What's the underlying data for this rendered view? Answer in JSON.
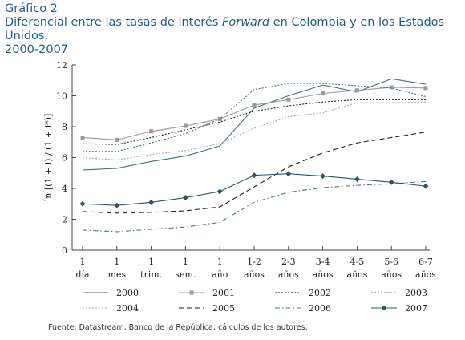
{
  "header": {
    "figure_label": "Gráfico 2",
    "title_part1": "Diferencial entre las tasas de interés ",
    "title_italic": "Forward",
    "title_part2": " en Colombia y en los Estados Unidos,",
    "title_line3": "2000-2007"
  },
  "source": "Fuente: Datastream, Banco de la República; cálculos de los autores.",
  "chart_data": {
    "type": "line",
    "title": "Diferencial entre las tasas de interés Forward en Colombia y en los Estados Unidos, 2000-2007",
    "xlabel": "",
    "ylabel": "ln [(1 + i) / (1 + i*)]",
    "ylim": [
      0,
      12
    ],
    "yticks": [
      0,
      2,
      4,
      6,
      8,
      10,
      12
    ],
    "categories": [
      [
        "1",
        "día"
      ],
      [
        "1",
        "mes"
      ],
      [
        "1",
        "trim."
      ],
      [
        "1",
        "sem."
      ],
      [
        "1",
        "año"
      ],
      [
        "1-2",
        "años"
      ],
      [
        "2-3",
        "años"
      ],
      [
        "3-4",
        "años"
      ],
      [
        "4-5",
        "años"
      ],
      [
        "5-6",
        "años"
      ],
      [
        "6-7",
        "años"
      ]
    ],
    "legend_position": "bottom",
    "grid": false,
    "series": [
      {
        "name": "2000",
        "color": "#4a6f80",
        "dash": "",
        "marker": "none",
        "values": [
          5.2,
          5.3,
          5.75,
          6.1,
          6.75,
          9.2,
          10.0,
          10.7,
          10.25,
          11.1,
          10.75
        ]
      },
      {
        "name": "2001",
        "color": "#9a9a9a",
        "dash": "",
        "marker": "square",
        "values": [
          7.3,
          7.15,
          7.7,
          8.05,
          8.5,
          9.4,
          9.75,
          10.15,
          10.35,
          10.55,
          10.5
        ]
      },
      {
        "name": "2002",
        "color": "#222222",
        "dash": "2,2",
        "marker": "none",
        "values": [
          6.9,
          6.85,
          7.3,
          7.8,
          8.3,
          9.0,
          9.35,
          9.6,
          9.75,
          9.75,
          9.75
        ]
      },
      {
        "name": "2003",
        "color": "#3f7590",
        "dash": "2,2",
        "marker": "none",
        "values": [
          6.4,
          6.4,
          6.95,
          7.55,
          8.5,
          10.4,
          10.8,
          10.8,
          10.65,
          10.5,
          9.95
        ]
      },
      {
        "name": "2004",
        "color": "#a8a8a8",
        "dash": "2,2",
        "marker": "none",
        "values": [
          6.0,
          5.85,
          6.2,
          6.45,
          6.9,
          7.9,
          8.65,
          8.9,
          9.55,
          9.55,
          9.6
        ]
      },
      {
        "name": "2005",
        "color": "#222222",
        "dash": "6,4",
        "marker": "none",
        "values": [
          2.5,
          2.4,
          2.45,
          2.55,
          2.8,
          4.1,
          5.4,
          6.3,
          6.95,
          7.3,
          7.65
        ]
      },
      {
        "name": "2006",
        "color": "#4a7a8a",
        "dash": "6,3,1.5,3",
        "marker": "none",
        "values": [
          1.3,
          1.2,
          1.35,
          1.5,
          1.8,
          3.1,
          3.75,
          4.05,
          4.2,
          4.3,
          4.45
        ]
      },
      {
        "name": "2007",
        "color": "#2f5566",
        "dash": "",
        "marker": "diamond",
        "values": [
          3.0,
          2.9,
          3.1,
          3.4,
          3.8,
          4.85,
          4.95,
          4.8,
          4.6,
          4.4,
          4.15
        ]
      }
    ]
  }
}
